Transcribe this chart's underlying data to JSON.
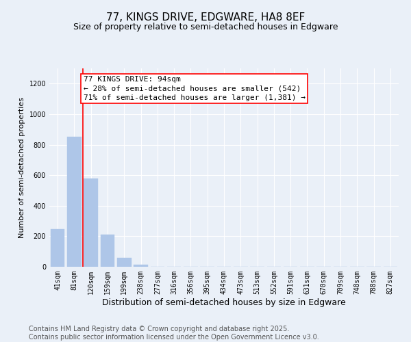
{
  "title": "77, KINGS DRIVE, EDGWARE, HA8 8EF",
  "subtitle": "Size of property relative to semi-detached houses in Edgware",
  "xlabel": "Distribution of semi-detached houses by size in Edgware",
  "ylabel": "Number of semi-detached properties",
  "categories": [
    "41sqm",
    "81sqm",
    "120sqm",
    "159sqm",
    "199sqm",
    "238sqm",
    "277sqm",
    "316sqm",
    "356sqm",
    "395sqm",
    "434sqm",
    "473sqm",
    "513sqm",
    "552sqm",
    "591sqm",
    "631sqm",
    "670sqm",
    "709sqm",
    "748sqm",
    "788sqm",
    "827sqm"
  ],
  "values": [
    248,
    853,
    580,
    210,
    60,
    12,
    0,
    0,
    0,
    0,
    0,
    0,
    0,
    0,
    0,
    0,
    0,
    0,
    0,
    0,
    0
  ],
  "bar_color": "#aec6e8",
  "bar_edge_color": "#aec6e8",
  "annotation_box_text": "77 KINGS DRIVE: 94sqm\n← 28% of semi-detached houses are smaller (542)\n71% of semi-detached houses are larger (1,381) →",
  "annotation_box_color": "white",
  "annotation_box_edge_color": "red",
  "vline_x_index": 1.5,
  "vline_color": "red",
  "ylim": [
    0,
    1300
  ],
  "yticks": [
    0,
    200,
    400,
    600,
    800,
    1000,
    1200
  ],
  "footer_line1": "Contains HM Land Registry data © Crown copyright and database right 2025.",
  "footer_line2": "Contains public sector information licensed under the Open Government Licence v3.0.",
  "background_color": "#eaf0f8",
  "plot_background_color": "#eaf0f8",
  "title_fontsize": 11,
  "subtitle_fontsize": 9,
  "xlabel_fontsize": 9,
  "ylabel_fontsize": 8,
  "footer_fontsize": 7,
  "annotation_fontsize": 8,
  "tick_fontsize": 7
}
